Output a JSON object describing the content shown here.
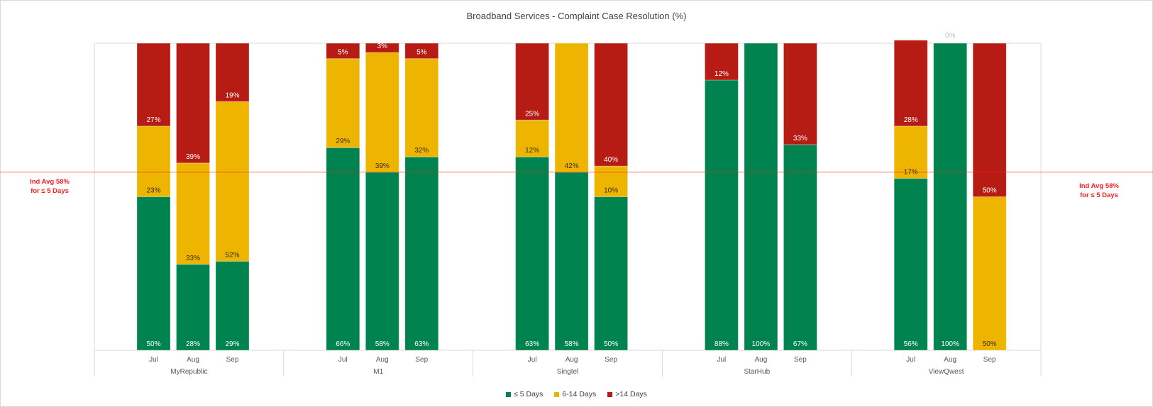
{
  "chart_data": {
    "type": "bar",
    "stacked": true,
    "title": "Broadband Services - Complaint Case Resolution (%)",
    "xlabel": "",
    "ylabel": "",
    "ylim": [
      0,
      100
    ],
    "grid": false,
    "legend_position": "bottom",
    "series_colors": {
      "le5": "#00834f",
      "d6_14": "#eeb500",
      "gt14": "#b71c14"
    },
    "series": [
      {
        "key": "le5",
        "name": "≤ 5 Days"
      },
      {
        "key": "d6_14",
        "name": "6-14 Days"
      },
      {
        "key": "gt14",
        "name": ">14 Days"
      }
    ],
    "groups": [
      {
        "name": "MyRepublic",
        "months": [
          {
            "month": "Jul",
            "le5": 50,
            "d6_14": 23,
            "gt14": 27,
            "labels": {
              "le5": "50%",
              "d6_14": "23%",
              "gt14": "27%"
            }
          },
          {
            "month": "Aug",
            "le5": 28,
            "d6_14": 33,
            "gt14": 39,
            "labels": {
              "le5": "28%",
              "d6_14": "33%",
              "gt14": "39%"
            }
          },
          {
            "month": "Sep",
            "le5": 29,
            "d6_14": 52,
            "gt14": 19,
            "labels": {
              "le5": "29%",
              "d6_14": "52%",
              "gt14": "19%"
            }
          }
        ]
      },
      {
        "name": "M1",
        "months": [
          {
            "month": "Jul",
            "le5": 66,
            "d6_14": 29,
            "gt14": 5,
            "labels": {
              "le5": "66%",
              "d6_14": "29%",
              "gt14": "5%"
            }
          },
          {
            "month": "Aug",
            "le5": 58,
            "d6_14": 39,
            "gt14": 3,
            "labels": {
              "le5": "58%",
              "d6_14": "39%",
              "gt14": "3%"
            }
          },
          {
            "month": "Sep",
            "le5": 63,
            "d6_14": 32,
            "gt14": 5,
            "labels": {
              "le5": "63%",
              "d6_14": "32%",
              "gt14": "5%"
            }
          }
        ]
      },
      {
        "name": "Singtel",
        "months": [
          {
            "month": "Jul",
            "le5": 63,
            "d6_14": 12,
            "gt14": 25,
            "labels": {
              "le5": "63%",
              "d6_14": "12%",
              "gt14": "25%"
            }
          },
          {
            "month": "Aug",
            "le5": 58,
            "d6_14": 42,
            "gt14": 0,
            "labels": {
              "le5": "58%",
              "d6_14": "42%",
              "gt14": ""
            }
          },
          {
            "month": "Sep",
            "le5": 50,
            "d6_14": 10,
            "gt14": 40,
            "labels": {
              "le5": "50%",
              "d6_14": "10%",
              "gt14": "40%"
            }
          }
        ]
      },
      {
        "name": "StarHub",
        "months": [
          {
            "month": "Jul",
            "le5": 88,
            "d6_14": 0,
            "gt14": 12,
            "labels": {
              "le5": "88%",
              "d6_14": "",
              "gt14": "12%"
            }
          },
          {
            "month": "Aug",
            "le5": 100,
            "d6_14": 0,
            "gt14": 0,
            "labels": {
              "le5": "100%",
              "d6_14": "",
              "gt14": ""
            }
          },
          {
            "month": "Sep",
            "le5": 67,
            "d6_14": 0,
            "gt14": 33,
            "labels": {
              "le5": "67%",
              "d6_14": "",
              "gt14": "33%"
            }
          }
        ]
      },
      {
        "name": "ViewQwest",
        "months": [
          {
            "month": "Jul",
            "le5": 56,
            "d6_14": 17,
            "gt14": 28,
            "labels": {
              "le5": "56%",
              "d6_14": "17%",
              "gt14": "28%"
            }
          },
          {
            "month": "Aug",
            "le5": 100,
            "d6_14": 0,
            "gt14": 0,
            "labels": {
              "le5": "100%",
              "d6_14": "",
              "gt14": "0%"
            }
          },
          {
            "month": "Sep",
            "le5": 0,
            "d6_14": 50,
            "gt14": 50,
            "labels": {
              "le5": "",
              "d6_14": "50%",
              "gt14": "50%"
            }
          }
        ]
      }
    ],
    "reference_line": {
      "value": 58,
      "color": "#ff1f1f",
      "label_line1": "Ind Avg 58%",
      "label_line2": "for ≤ 5 Days"
    }
  }
}
